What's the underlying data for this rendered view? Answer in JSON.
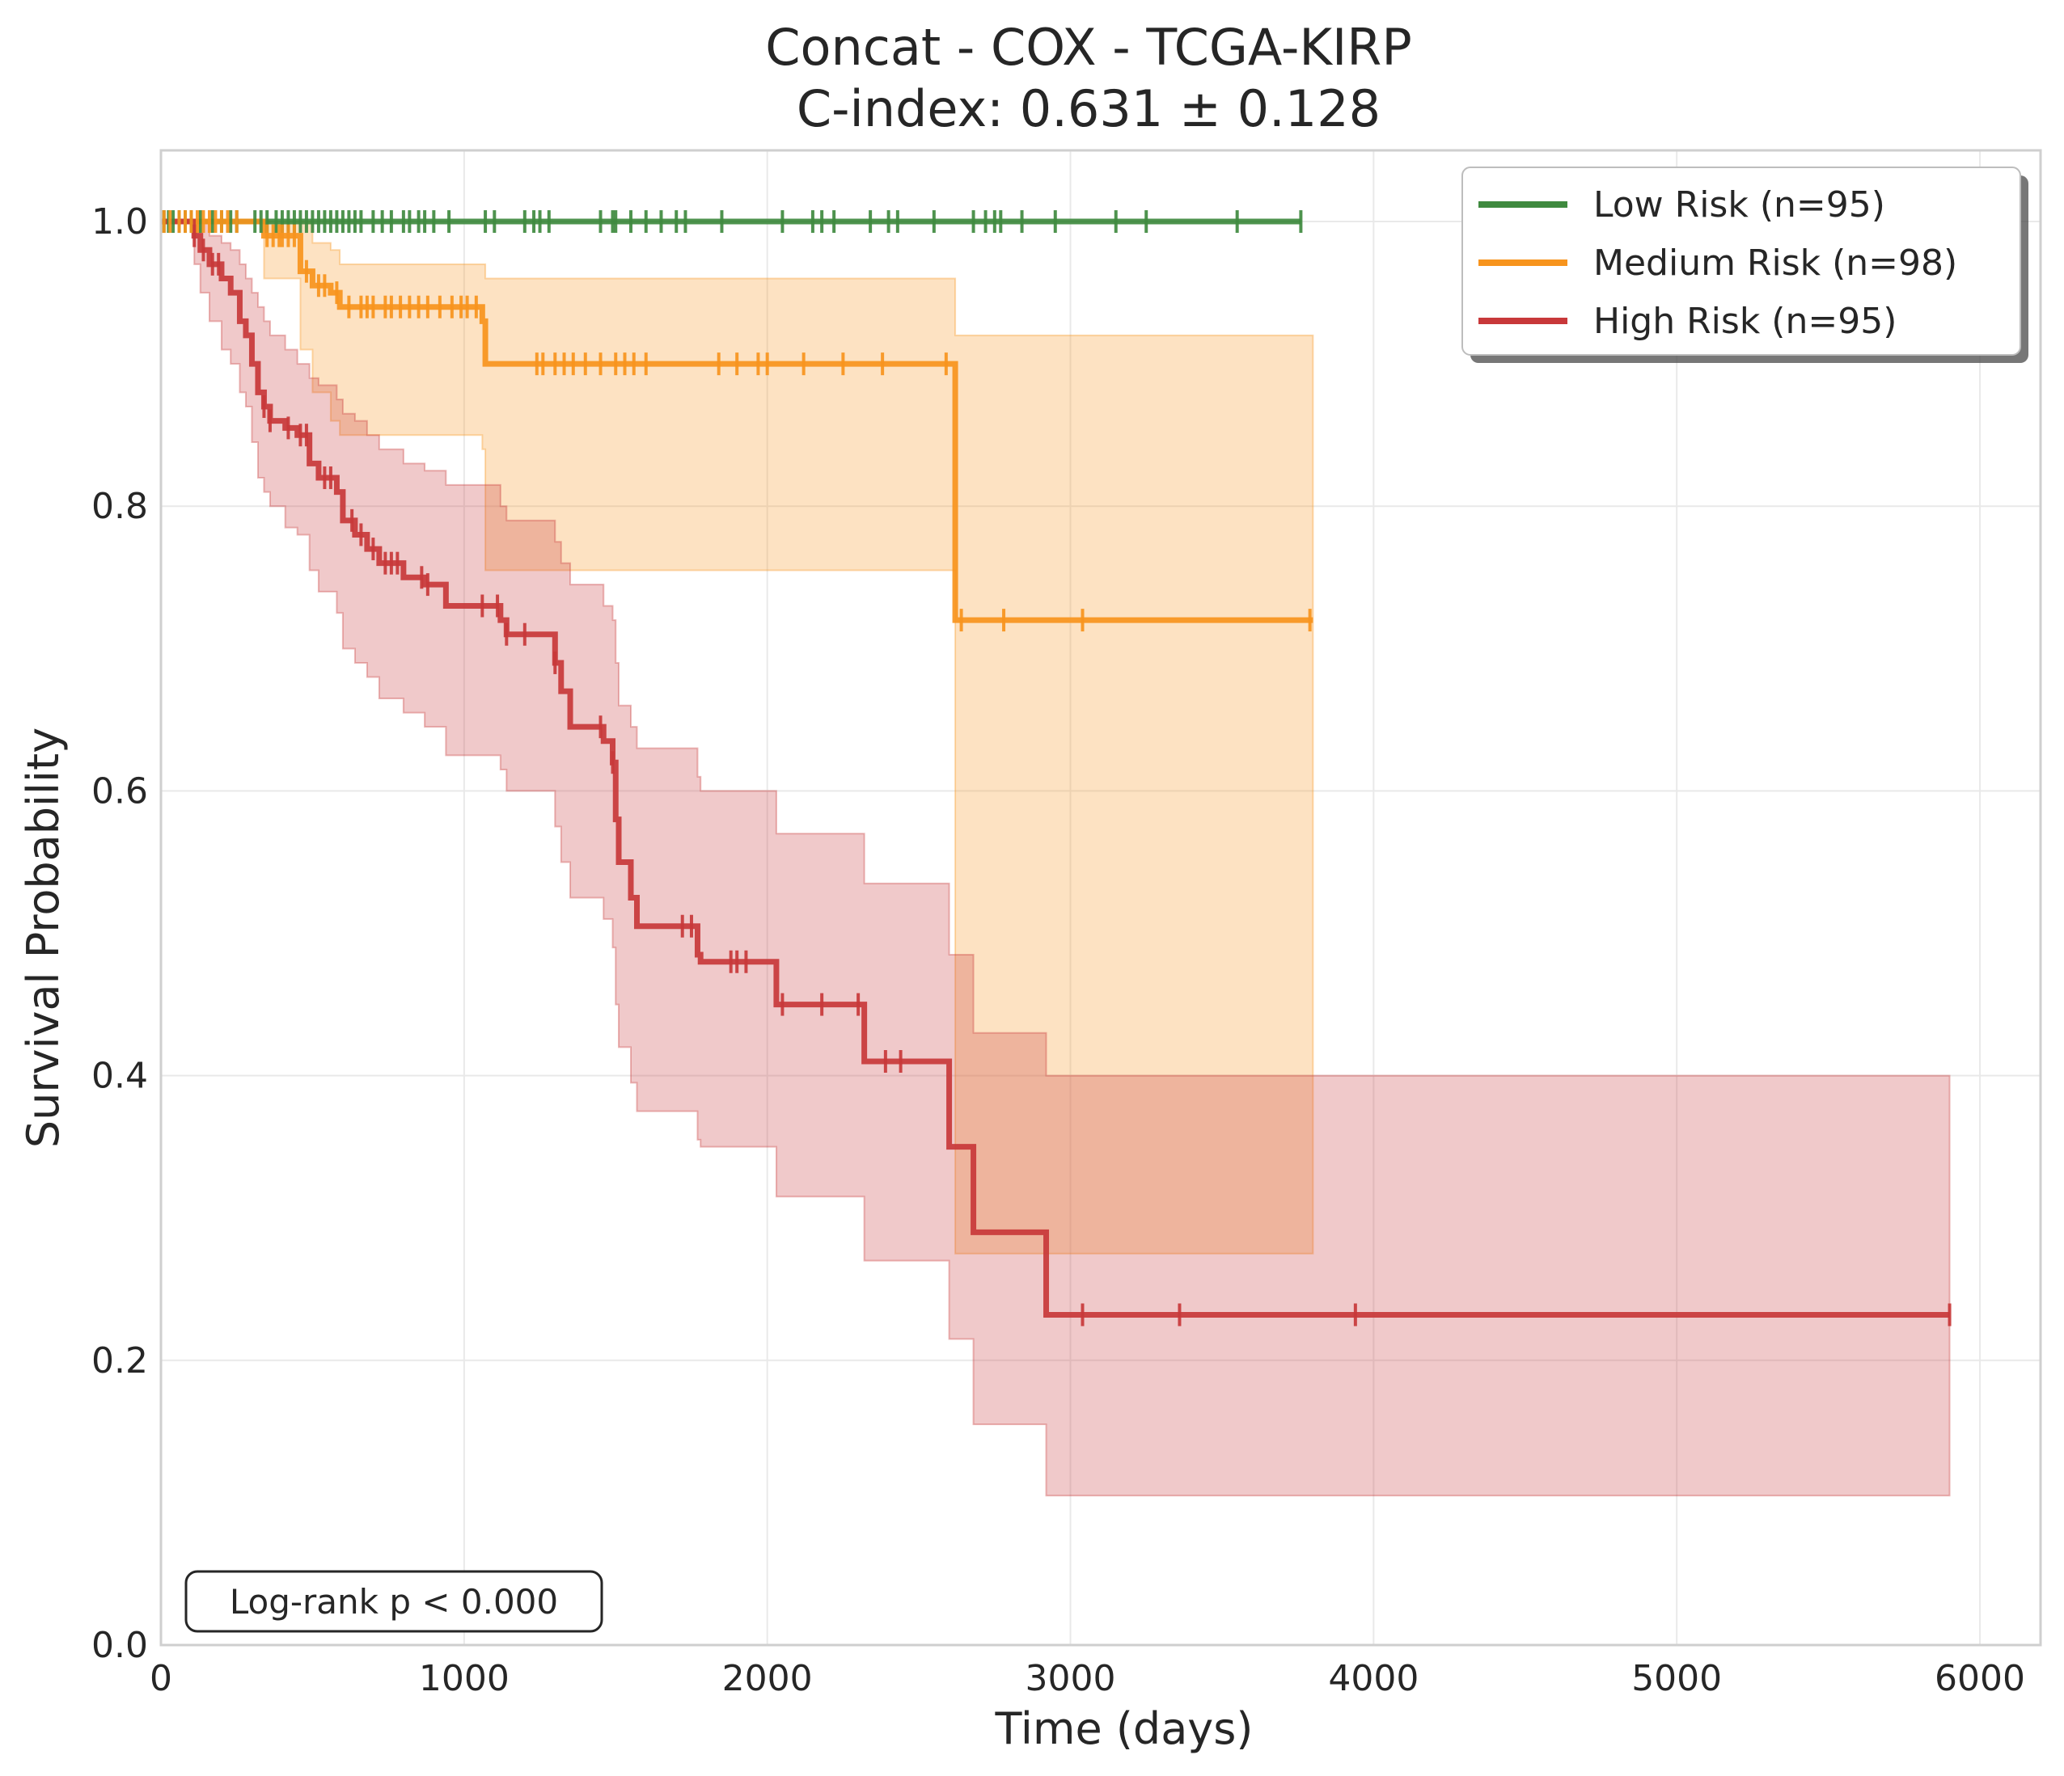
{
  "chart_data": {
    "type": "line",
    "subtype": "kaplan-meier",
    "title": "Concat - COX - TCGA-KIRP",
    "subtitle": "C-index: 0.631 ± 0.128",
    "xlabel": "Time (days)",
    "ylabel": "Survival Probability",
    "xlim": [
      0,
      6200
    ],
    "ylim": [
      0,
      1.05
    ],
    "xticks": [
      0,
      1000,
      2000,
      3000,
      4000,
      5000,
      6000
    ],
    "xtick_labels": [
      "0",
      "1000",
      "2000",
      "3000",
      "4000",
      "5000",
      "6000"
    ],
    "yticks": [
      0,
      0.2,
      0.4,
      0.6,
      0.8,
      1.0
    ],
    "ytick_labels": [
      "0.0",
      "0.2",
      "0.4",
      "0.6",
      "0.8",
      "1.0"
    ],
    "grid": true,
    "legend_position": "top-right",
    "annotation": "Log-rank p < 0.000",
    "series": [
      {
        "name": "Low Risk (n=95)",
        "color": "#3f8a3f",
        "steps": [
          [
            0,
            1.0
          ],
          [
            3760,
            1.0
          ]
        ],
        "ci": [
          [
            0,
            1.0,
            1.0
          ],
          [
            3760,
            1.0,
            1.0
          ]
        ],
        "censor_times": [
          10,
          25,
          40,
          60,
          80,
          100,
          130,
          170,
          200,
          230,
          250,
          310,
          330,
          350,
          380,
          400,
          420,
          440,
          460,
          480,
          500,
          520,
          540,
          560,
          580,
          600,
          620,
          640,
          660,
          700,
          730,
          760,
          800,
          820,
          850,
          870,
          900,
          950,
          1070,
          1100,
          1200,
          1230,
          1250,
          1280,
          1450,
          1490,
          1500,
          1550,
          1600,
          1650,
          1700,
          1730,
          1850,
          2050,
          2150,
          2180,
          2220,
          2340,
          2400,
          2430,
          2550,
          2680,
          2720,
          2750,
          2770,
          2840,
          2950,
          3150,
          3250,
          3550,
          3760
        ]
      },
      {
        "name": "Medium Risk (n=98)",
        "color": "#f7941d",
        "steps": [
          [
            0,
            1.0
          ],
          [
            340,
            0.99
          ],
          [
            460,
            0.965
          ],
          [
            500,
            0.955
          ],
          [
            560,
            0.95
          ],
          [
            590,
            0.94
          ],
          [
            1060,
            0.93
          ],
          [
            1070,
            0.9
          ],
          [
            2600,
            0.9
          ],
          [
            2620,
            0.72
          ],
          [
            3800,
            0.72
          ]
        ],
        "ci": [
          [
            0,
            1.0,
            1.0
          ],
          [
            340,
            0.96,
            1.0
          ],
          [
            460,
            0.91,
            1.0
          ],
          [
            500,
            0.88,
            0.985
          ],
          [
            560,
            0.86,
            0.98
          ],
          [
            590,
            0.85,
            0.97
          ],
          [
            1060,
            0.84,
            0.97
          ],
          [
            1070,
            0.755,
            0.96
          ],
          [
            2620,
            0.275,
            0.92
          ],
          [
            3800,
            0.275,
            0.92
          ]
        ],
        "censor_times": [
          10,
          30,
          60,
          80,
          100,
          120,
          140,
          160,
          180,
          200,
          220,
          250,
          350,
          370,
          390,
          400,
          420,
          440,
          480,
          520,
          540,
          580,
          620,
          660,
          680,
          700,
          740,
          760,
          790,
          820,
          850,
          880,
          920,
          960,
          990,
          1010,
          1040,
          1240,
          1260,
          1300,
          1330,
          1360,
          1400,
          1450,
          1500,
          1530,
          1560,
          1600,
          1840,
          1900,
          1970,
          2000,
          2120,
          2250,
          2380,
          2590,
          2640,
          2780,
          3040,
          3790
        ]
      },
      {
        "name": "High Risk (n=95)",
        "color": "#c8383a",
        "steps": [
          [
            0,
            1.0
          ],
          [
            110,
            0.99
          ],
          [
            130,
            0.98
          ],
          [
            160,
            0.97
          ],
          [
            200,
            0.96
          ],
          [
            230,
            0.95
          ],
          [
            260,
            0.93
          ],
          [
            280,
            0.92
          ],
          [
            300,
            0.9
          ],
          [
            320,
            0.88
          ],
          [
            340,
            0.87
          ],
          [
            360,
            0.86
          ],
          [
            410,
            0.855
          ],
          [
            450,
            0.85
          ],
          [
            490,
            0.83
          ],
          [
            520,
            0.82
          ],
          [
            580,
            0.81
          ],
          [
            600,
            0.79
          ],
          [
            640,
            0.78
          ],
          [
            680,
            0.77
          ],
          [
            720,
            0.76
          ],
          [
            800,
            0.75
          ],
          [
            870,
            0.745
          ],
          [
            940,
            0.73
          ],
          [
            1120,
            0.72
          ],
          [
            1140,
            0.71
          ],
          [
            1300,
            0.69
          ],
          [
            1320,
            0.67
          ],
          [
            1350,
            0.645
          ],
          [
            1460,
            0.635
          ],
          [
            1490,
            0.62
          ],
          [
            1500,
            0.58
          ],
          [
            1510,
            0.55
          ],
          [
            1550,
            0.525
          ],
          [
            1570,
            0.505
          ],
          [
            1770,
            0.485
          ],
          [
            1780,
            0.48
          ],
          [
            2030,
            0.45
          ],
          [
            2320,
            0.41
          ],
          [
            2600,
            0.35
          ],
          [
            2680,
            0.29
          ],
          [
            2920,
            0.232
          ],
          [
            5900,
            0.232
          ]
        ],
        "ci": [
          [
            0,
            1.0,
            1.0
          ],
          [
            110,
            0.97,
            1.0
          ],
          [
            130,
            0.95,
            1.0
          ],
          [
            160,
            0.93,
            0.99
          ],
          [
            200,
            0.91,
            0.985
          ],
          [
            230,
            0.9,
            0.98
          ],
          [
            260,
            0.88,
            0.97
          ],
          [
            280,
            0.87,
            0.96
          ],
          [
            300,
            0.845,
            0.95
          ],
          [
            320,
            0.82,
            0.94
          ],
          [
            340,
            0.81,
            0.93
          ],
          [
            360,
            0.8,
            0.92
          ],
          [
            410,
            0.785,
            0.91
          ],
          [
            450,
            0.78,
            0.9
          ],
          [
            490,
            0.755,
            0.89
          ],
          [
            520,
            0.74,
            0.885
          ],
          [
            580,
            0.725,
            0.875
          ],
          [
            600,
            0.7,
            0.865
          ],
          [
            640,
            0.69,
            0.86
          ],
          [
            680,
            0.68,
            0.85
          ],
          [
            720,
            0.665,
            0.84
          ],
          [
            800,
            0.655,
            0.83
          ],
          [
            870,
            0.645,
            0.825
          ],
          [
            940,
            0.625,
            0.815
          ],
          [
            1120,
            0.615,
            0.8
          ],
          [
            1140,
            0.6,
            0.79
          ],
          [
            1300,
            0.575,
            0.775
          ],
          [
            1320,
            0.55,
            0.76
          ],
          [
            1350,
            0.525,
            0.745
          ],
          [
            1460,
            0.51,
            0.73
          ],
          [
            1490,
            0.49,
            0.72
          ],
          [
            1500,
            0.45,
            0.69
          ],
          [
            1510,
            0.42,
            0.66
          ],
          [
            1550,
            0.395,
            0.645
          ],
          [
            1570,
            0.375,
            0.63
          ],
          [
            1770,
            0.355,
            0.61
          ],
          [
            1780,
            0.35,
            0.6
          ],
          [
            2030,
            0.315,
            0.57
          ],
          [
            2320,
            0.27,
            0.535
          ],
          [
            2600,
            0.215,
            0.485
          ],
          [
            2680,
            0.155,
            0.43
          ],
          [
            2920,
            0.105,
            0.4
          ],
          [
            5900,
            0.105,
            0.4
          ]
        ],
        "censor_times": [
          110,
          140,
          170,
          190,
          340,
          360,
          420,
          460,
          480,
          540,
          560,
          630,
          660,
          700,
          740,
          760,
          780,
          860,
          880,
          1060,
          1110,
          1140,
          1200,
          1300,
          1450,
          1490,
          1720,
          1750,
          1880,
          1900,
          1930,
          2050,
          2180,
          2300,
          2390,
          2440,
          3040,
          3360,
          3940,
          5900
        ]
      }
    ]
  }
}
